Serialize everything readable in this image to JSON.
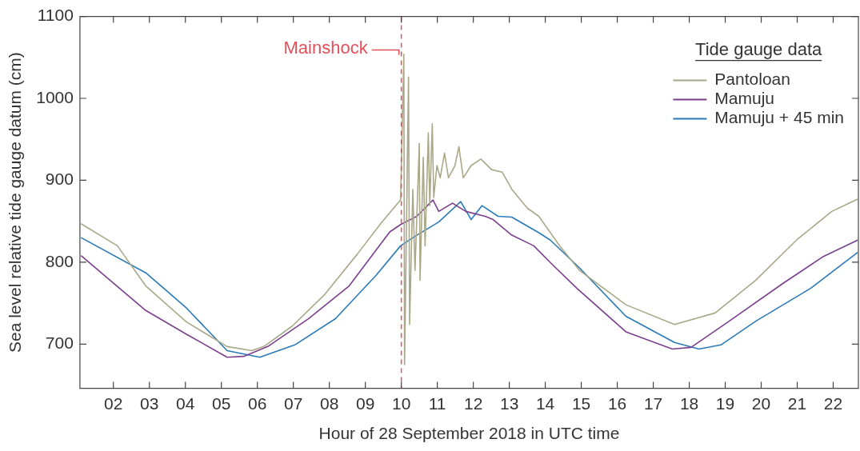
{
  "chart_data": {
    "type": "line",
    "xlabel": "Hour of 28 September 2018 in UTC time",
    "ylabel": "Sea level relative tide gauge datum (cm)",
    "legend_title": "Tide gauge data",
    "legend": "top right",
    "grid": false,
    "marker": "none",
    "line_style": "solid",
    "xlim": [
      1.07,
      22.7
    ],
    "ylim": [
      646,
      1100
    ],
    "xticks": [
      {
        "value": 2,
        "label": "02"
      },
      {
        "value": 3,
        "label": "03"
      },
      {
        "value": 4,
        "label": "04"
      },
      {
        "value": 5,
        "label": "05"
      },
      {
        "value": 6,
        "label": "06"
      },
      {
        "value": 7,
        "label": "07"
      },
      {
        "value": 8,
        "label": "08"
      },
      {
        "value": 9,
        "label": "09"
      },
      10,
      11,
      12,
      13,
      14,
      15,
      16,
      17,
      18,
      19,
      20,
      21,
      22
    ],
    "yticks": [
      700,
      800,
      900,
      1000,
      1100
    ],
    "ref_lines": [
      {
        "axis": "x",
        "value": 10.0,
        "label": "Mainshock",
        "color": "#e3505a",
        "line_style": "dashed"
      }
    ],
    "series": [
      {
        "name": "Pantoloan",
        "color": "#a9a888",
        "x": [
          1.1,
          2.11,
          2.9,
          4.03,
          5.16,
          5.84,
          6.18,
          6.97,
          7.88,
          8.78,
          9.46,
          9.98,
          10.07,
          10.09,
          10.2,
          10.23,
          10.32,
          10.38,
          10.5,
          10.52,
          10.61,
          10.66,
          10.75,
          10.79,
          10.86,
          10.9,
          10.99,
          11.08,
          11.2,
          11.31,
          11.49,
          11.6,
          11.72,
          11.94,
          12.21,
          12.51,
          12.8,
          13.07,
          13.5,
          13.82,
          14.4,
          14.95,
          16.24,
          17.59,
          18.72,
          19.85,
          20.98,
          21.96,
          22.68
        ],
        "values": [
          847,
          820,
          771,
          727,
          697,
          692,
          697,
          722,
          761,
          810,
          849,
          876,
          1054,
          675,
          1026,
          724,
          889,
          790,
          945,
          778,
          928,
          820,
          958,
          869,
          969,
          879,
          918,
          903,
          933,
          903,
          918,
          941,
          903,
          918,
          926,
          913,
          910,
          889,
          866,
          856,
          820,
          790,
          748,
          724,
          738,
          778,
          827,
          862,
          877
        ]
      },
      {
        "name": "Mamuju",
        "color": "#7b3f8e",
        "x": [
          1.1,
          2.9,
          4.03,
          5.16,
          5.62,
          6.29,
          7.42,
          8.55,
          9.68,
          9.98,
          10.43,
          10.88,
          11.04,
          11.42,
          11.79,
          12.33,
          12.55,
          13.07,
          13.68,
          14.2,
          14.88,
          16.24,
          17.53,
          18.05,
          19.11,
          20.6,
          21.73,
          22.68
        ],
        "values": [
          808,
          741,
          712,
          684,
          685,
          697,
          731,
          771,
          837,
          846,
          856,
          876,
          862,
          872,
          862,
          856,
          852,
          833,
          820,
          797,
          768,
          715,
          694,
          696,
          728,
          774,
          807,
          827
        ]
      },
      {
        "name": "Mamuju + 45 min",
        "color": "#2a7ab8",
        "x": [
          1.1,
          2.9,
          4.03,
          5.16,
          6.07,
          7.04,
          8.17,
          9.3,
          9.98,
          10.43,
          11.04,
          11.65,
          11.94,
          12.24,
          12.69,
          13.07,
          13.82,
          14.14,
          14.95,
          16.24,
          17.59,
          18.27,
          18.88,
          19.85,
          21.37,
          22.68
        ],
        "values": [
          830,
          787,
          744,
          692,
          684,
          699,
          731,
          784,
          820,
          833,
          849,
          874,
          852,
          869,
          856,
          855,
          836,
          827,
          793,
          734,
          702,
          694,
          699,
          728,
          768,
          812
        ]
      }
    ]
  }
}
